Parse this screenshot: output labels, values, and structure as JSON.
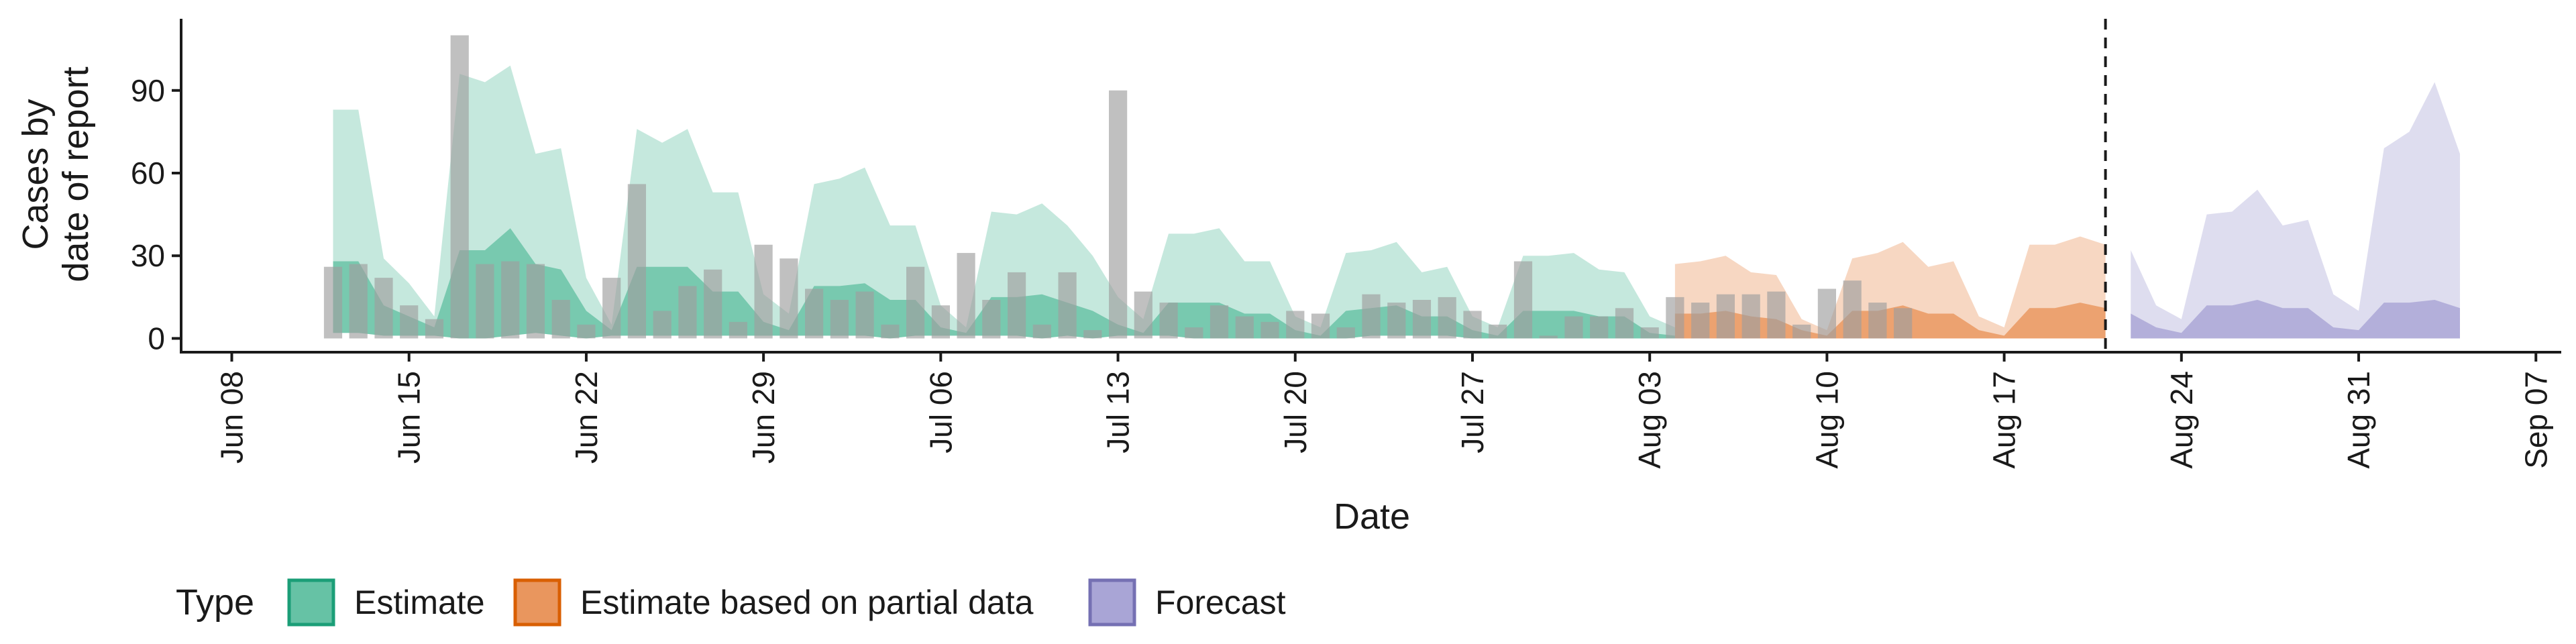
{
  "chart_data": {
    "type": "bar",
    "xlabel": "Date",
    "ylabel": [
      "Cases by",
      "date of report"
    ],
    "ylim": [
      -5,
      116
    ],
    "y_ticks": [
      0,
      30,
      60,
      90
    ],
    "x_ticks": [
      "Jun 08",
      "Jun 15",
      "Jun 22",
      "Jun 29",
      "Jul 06",
      "Jul 13",
      "Jul 20",
      "Jul 27",
      "Aug 03",
      "Aug 10",
      "Aug 17",
      "Aug 24",
      "Aug 31",
      "Sep 07"
    ],
    "x_start_date": "2020-06-06",
    "x_end_date": "2020-09-08",
    "x_tick_start_date": "2020-06-08",
    "forecast_cutoff_date": "2020-08-21",
    "grid": false,
    "legend": {
      "title": "Type",
      "position": "bottom",
      "items": [
        {
          "label": "Estimate",
          "fill": "#66c2a5",
          "stroke": "#1b9e77"
        },
        {
          "label": "Estimate based on partial data",
          "fill": "#e9965e",
          "stroke": "#d95f02"
        },
        {
          "label": "Forecast",
          "fill": "#a9a5d6",
          "stroke": "#7570b3"
        }
      ]
    },
    "reported_cases": {
      "color": "#9e9e9e",
      "start_date": "2020-06-12",
      "values": [
        26,
        27,
        22,
        12,
        7,
        110,
        27,
        28,
        27,
        14,
        5,
        22,
        56,
        10,
        19,
        25,
        6,
        34,
        29,
        18,
        14,
        17,
        5,
        26,
        12,
        31,
        14,
        24,
        5,
        24,
        3,
        90,
        17,
        13,
        4,
        12,
        8,
        6,
        10,
        9,
        4,
        16,
        13,
        14,
        15,
        10,
        5,
        28,
        1,
        8,
        8,
        11,
        4,
        15,
        13,
        16,
        16,
        17,
        5,
        18,
        21,
        13,
        11
      ]
    },
    "series": [
      {
        "name": "Estimate",
        "color": "#66c2a5",
        "start_date": "2020-06-12",
        "lower_90": [
          2,
          2,
          1,
          1,
          1,
          0,
          0,
          1,
          2,
          1,
          0,
          1,
          1,
          1,
          1,
          1,
          1,
          1,
          1,
          1,
          1,
          1,
          0,
          1,
          1,
          1,
          1,
          1,
          0,
          1,
          0,
          1,
          1,
          1,
          0,
          0,
          0,
          0,
          0,
          0,
          0,
          1,
          1,
          1,
          1,
          0,
          0,
          0,
          0
        ],
        "upper_90": [
          83,
          83,
          29,
          20,
          8,
          96,
          93,
          99,
          67,
          69,
          22,
          5,
          76,
          71,
          76,
          53,
          53,
          16,
          9,
          56,
          58,
          62,
          41,
          41,
          12,
          4,
          46,
          45,
          49,
          41,
          30,
          15,
          7,
          38,
          38,
          40,
          28,
          28,
          8,
          4,
          31,
          32,
          35,
          24,
          26,
          8,
          4,
          30,
          30,
          31,
          25,
          24,
          8,
          4
        ],
        "upper_50": [
          28,
          28,
          12,
          8,
          4,
          32,
          32,
          40,
          27,
          25,
          10,
          3,
          26,
          26,
          26,
          17,
          17,
          6,
          3,
          19,
          19,
          20,
          14,
          14,
          4,
          2,
          15,
          15,
          16,
          13,
          10,
          5,
          2,
          13,
          13,
          13,
          9,
          9,
          3,
          1,
          10,
          11,
          12,
          8,
          8,
          3,
          1,
          10,
          10,
          10,
          8,
          8,
          2,
          1
        ]
      },
      {
        "name": "Estimate based on partial data",
        "color": "#e9965e",
        "start_date": "2020-08-04",
        "upper_90": [
          27,
          28,
          30,
          24,
          23,
          7,
          3,
          29,
          31,
          35,
          26,
          28,
          8,
          4,
          34,
          34,
          37,
          34
        ],
        "upper_50": [
          9,
          9,
          10,
          8,
          7,
          3,
          1,
          10,
          10,
          12,
          9,
          9,
          3,
          1,
          11,
          11,
          13,
          11
        ]
      },
      {
        "name": "Forecast",
        "color": "#a9a5d6",
        "start_date": "2020-08-22",
        "upper_90": [
          32,
          12,
          7,
          45,
          46,
          54,
          41,
          43,
          16,
          10,
          69,
          75,
          93,
          67
        ],
        "upper_50": [
          9,
          4,
          2,
          12,
          12,
          14,
          11,
          11,
          4,
          3,
          13,
          13,
          14,
          11
        ]
      }
    ]
  }
}
